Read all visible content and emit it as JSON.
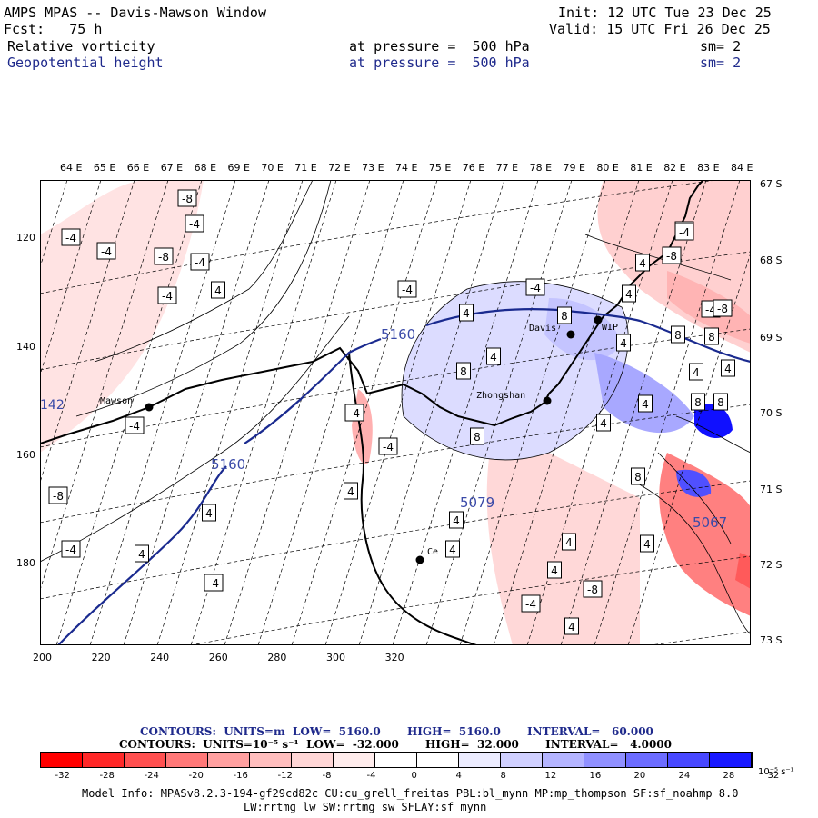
{
  "header": {
    "title": "AMPS MPAS -- Davis-Mawson Window",
    "init": "Init: 12 UTC Tue 23 Dec 25",
    "fcst": "Fcst:   75 h",
    "valid": "Valid: 15 UTC Fri 26 Dec 25",
    "field1": {
      "name": "Relative vorticity",
      "level": "at pressure =  500 hPa",
      "sm": "sm= 2"
    },
    "field2": {
      "name": "Geopotential height",
      "level": "at pressure =  500 hPa",
      "sm": "sm= 2"
    }
  },
  "map": {
    "lon_labels": [
      "64 E",
      "65 E",
      "66 E",
      "67 E",
      "68 E",
      "69 E",
      "70 E",
      "71 E",
      "72 E",
      "73 E",
      "74 E",
      "75 E",
      "76 E",
      "77 E",
      "78 E",
      "79 E",
      "80 E",
      "81 E",
      "82 E",
      "83 E",
      "84 E"
    ],
    "lat_labels": [
      "67 S",
      "68 S",
      "69 S",
      "70 S",
      "71 S",
      "72 S",
      "73 S"
    ],
    "x_ticks": [
      "200",
      "220",
      "240",
      "260",
      "280",
      "300",
      "320"
    ],
    "y_ticks": [
      "120",
      "140",
      "160",
      "180"
    ],
    "stations": [
      {
        "name": "Mawson"
      },
      {
        "name": "Davis"
      },
      {
        "name": "Zhongshan"
      },
      {
        "name": "Ce"
      },
      {
        "name": "WIP"
      }
    ],
    "height_labels": [
      "5160",
      "5160",
      "5079",
      "5067",
      "142"
    ],
    "vort_box_labels": [
      "-8",
      "-4",
      "-4",
      "-4",
      "-8",
      "-4",
      "-4",
      "4",
      "-4",
      "-4",
      "4",
      "-4",
      "4",
      "8",
      "8",
      "4",
      "4",
      "8",
      "4",
      "-4",
      "8",
      "4",
      "-4",
      "4",
      "8",
      "8",
      "-4",
      "4",
      "4",
      "-8",
      "-4",
      "4",
      "4",
      "4",
      "-8",
      "4",
      "4",
      "8",
      "-4",
      "4",
      "4",
      "-8",
      "-4",
      "8",
      "4",
      "-8",
      "-4",
      "4",
      "-4"
    ],
    "colors": {
      "height_contour": "#1a2a8f",
      "coast": "#000000"
    }
  },
  "legend": {
    "contours1": "CONTOURS:  UNITS=m  LOW=  5160.0       HIGH=  5160.0       INTERVAL=   60.000",
    "contours2": "CONTOURS:  UNITS=10⁻⁵ s⁻¹  LOW=  -32.000       HIGH=  32.000       INTERVAL=   4.0000",
    "colorbar_labels": [
      "-32",
      "-28",
      "-24",
      "-20",
      "-16",
      "-12",
      "-8",
      "-4",
      "0",
      "4",
      "8",
      "12",
      "16",
      "20",
      "24",
      "28",
      "32"
    ],
    "units": "10⁻⁵ s⁻¹",
    "colors": [
      "#ff0000",
      "#ff2828",
      "#ff5050",
      "#ff7878",
      "#ffa0a0",
      "#ffbebe",
      "#ffd6d6",
      "#ffecec",
      "#ffffff",
      "#ffffff",
      "#ececff",
      "#d0d0ff",
      "#b4b4ff",
      "#9090ff",
      "#6c6cff",
      "#4848ff",
      "#1818ff"
    ]
  },
  "footer": {
    "line1": "Model Info: MPASv8.2.3-194-gf29cd82c CU:cu_grell_freitas PBL:bl_mynn MP:mp_thompson SF:sf_noahmp 8.0",
    "line2": "LW:rrtmg_lw SW:rrtmg_sw SFLAY:sf_mynn"
  }
}
